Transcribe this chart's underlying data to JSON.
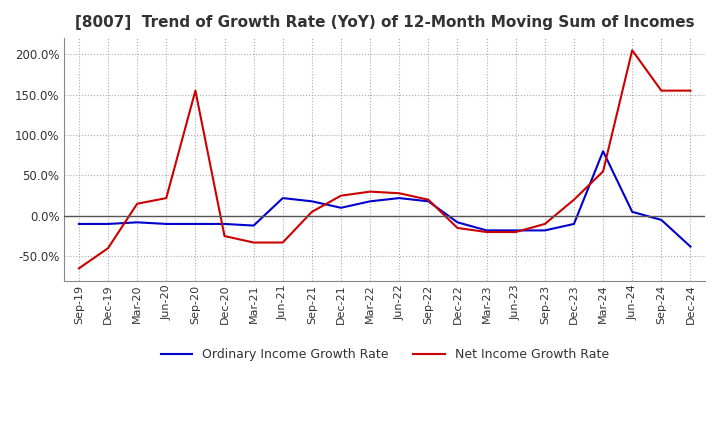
{
  "title": "[8007]  Trend of Growth Rate (YoY) of 12-Month Moving Sum of Incomes",
  "title_fontsize": 11,
  "ylim": [
    -80,
    220
  ],
  "yticks": [
    -50.0,
    0.0,
    50.0,
    100.0,
    150.0,
    200.0
  ],
  "background_color": "#ffffff",
  "grid_color": "#aaaaaa",
  "legend_labels": [
    "Ordinary Income Growth Rate",
    "Net Income Growth Rate"
  ],
  "line_colors": [
    "#0000cc",
    "#cc0000"
  ],
  "x_labels": [
    "Sep-19",
    "Dec-19",
    "Mar-20",
    "Jun-20",
    "Sep-20",
    "Dec-20",
    "Mar-21",
    "Jun-21",
    "Sep-21",
    "Dec-21",
    "Mar-22",
    "Jun-22",
    "Sep-22",
    "Dec-22",
    "Mar-23",
    "Jun-23",
    "Sep-23",
    "Dec-23",
    "Mar-24",
    "Jun-24",
    "Sep-24",
    "Dec-24"
  ],
  "ordinary_income": [
    -10,
    -10,
    -8,
    -10,
    -10,
    -10,
    -12,
    22,
    18,
    10,
    18,
    22,
    18,
    -8,
    -18,
    -18,
    -18,
    -10,
    80,
    5,
    -5,
    -38
  ],
  "net_income": [
    -65,
    -40,
    15,
    22,
    155,
    -25,
    -33,
    -33,
    5,
    25,
    30,
    28,
    20,
    -15,
    -20,
    -20,
    -10,
    20,
    55,
    205,
    155,
    155
  ]
}
